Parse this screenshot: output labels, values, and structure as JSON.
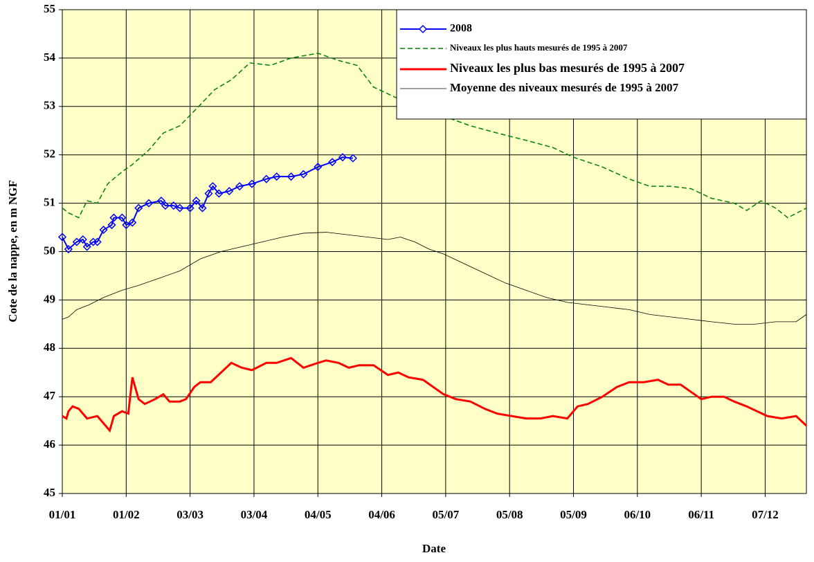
{
  "chart_data": {
    "type": "line",
    "ylabel": "Cote de la nappe, en m NGF",
    "xlabel": "Date",
    "xlim": [
      0,
      361
    ],
    "xticks": [
      {
        "value": 0,
        "label": "01/01"
      },
      {
        "value": 31,
        "label": "01/02"
      },
      {
        "value": 62,
        "label": "03/03"
      },
      {
        "value": 93,
        "label": "03/04"
      },
      {
        "value": 124,
        "label": "04/05"
      },
      {
        "value": 155,
        "label": "04/06"
      },
      {
        "value": 186,
        "label": "05/07"
      },
      {
        "value": 217,
        "label": "05/08"
      },
      {
        "value": 248,
        "label": "05/09"
      },
      {
        "value": 279,
        "label": "06/10"
      },
      {
        "value": 310,
        "label": "06/11"
      },
      {
        "value": 341,
        "label": "07/12"
      }
    ],
    "ylim": [
      45,
      55
    ],
    "yticks": [
      45,
      46,
      47,
      48,
      49,
      50,
      51,
      52,
      53,
      54,
      55
    ],
    "grid": true,
    "legend": "upper right",
    "series": [
      {
        "name": "2008",
        "color": "#0000ff",
        "style": "solid",
        "marker": "diamond",
        "x": [
          0,
          3,
          7,
          10,
          12,
          15,
          17,
          20,
          24,
          25,
          29,
          31,
          34,
          37,
          42,
          48,
          50,
          54,
          57,
          62,
          65,
          68,
          71,
          73,
          76,
          81,
          86,
          92,
          99,
          104,
          111,
          117,
          124,
          131,
          136,
          141
        ],
        "values": [
          50.3,
          50.05,
          50.2,
          50.25,
          50.1,
          50.2,
          50.2,
          50.45,
          50.55,
          50.7,
          50.7,
          50.55,
          50.6,
          50.9,
          51.0,
          51.05,
          50.95,
          50.95,
          50.9,
          50.9,
          51.05,
          50.9,
          51.2,
          51.35,
          51.2,
          51.25,
          51.35,
          51.4,
          51.5,
          51.55,
          51.55,
          51.6,
          51.75,
          51.85,
          51.95,
          51.93
        ]
      },
      {
        "name": "Niveaux les plus hauts mesurés de 1995 à 2007",
        "color": "#008000",
        "style": "dashed",
        "x": [
          0,
          3,
          8,
          12,
          17,
          22,
          29,
          34,
          42,
          49,
          57,
          65,
          74,
          82,
          91,
          101,
          111,
          124,
          134,
          143,
          151,
          161,
          171,
          185,
          198,
          211,
          225,
          238,
          248,
          262,
          275,
          285,
          295,
          305,
          315,
          326,
          332,
          339,
          346,
          352,
          361
        ],
        "values": [
          50.9,
          50.8,
          50.7,
          51.05,
          51.0,
          51.4,
          51.65,
          51.8,
          52.1,
          52.45,
          52.6,
          52.95,
          53.35,
          53.55,
          53.9,
          53.85,
          54.0,
          54.1,
          53.95,
          53.85,
          53.4,
          53.2,
          53.0,
          52.8,
          52.6,
          52.45,
          52.3,
          52.15,
          51.95,
          51.75,
          51.5,
          51.35,
          51.35,
          51.3,
          51.1,
          51.0,
          50.85,
          51.05,
          50.9,
          50.7,
          50.9
        ]
      },
      {
        "name": "Niveaux les plus bas mesurés de 1995 à 2007",
        "color": "#ff0000",
        "style": "solid",
        "x": [
          0,
          2,
          3,
          5,
          8,
          12,
          17,
          20,
          23,
          25,
          29,
          32,
          34,
          37,
          40,
          45,
          49,
          52,
          57,
          60,
          64,
          67,
          72,
          77,
          82,
          87,
          92,
          99,
          104,
          111,
          117,
          124,
          128,
          134,
          139,
          144,
          151,
          158,
          163,
          168,
          175,
          180,
          185,
          191,
          198,
          205,
          211,
          218,
          225,
          232,
          238,
          245,
          250,
          255,
          262,
          269,
          275,
          282,
          289,
          294,
          300,
          305,
          310,
          315,
          321,
          326,
          332,
          337,
          342,
          349,
          356,
          361
        ],
        "values": [
          46.6,
          46.55,
          46.7,
          46.8,
          46.75,
          46.55,
          46.6,
          46.45,
          46.3,
          46.6,
          46.7,
          46.65,
          47.4,
          46.95,
          46.85,
          46.95,
          47.05,
          46.9,
          46.9,
          46.95,
          47.2,
          47.3,
          47.3,
          47.5,
          47.7,
          47.6,
          47.55,
          47.7,
          47.7,
          47.8,
          47.6,
          47.7,
          47.75,
          47.7,
          47.6,
          47.65,
          47.65,
          47.45,
          47.5,
          47.4,
          47.35,
          47.2,
          47.05,
          46.95,
          46.9,
          46.75,
          46.65,
          46.6,
          46.55,
          46.55,
          46.6,
          46.55,
          46.8,
          46.85,
          47.0,
          47.2,
          47.3,
          47.3,
          47.35,
          47.25,
          47.25,
          47.1,
          46.95,
          47.0,
          47.0,
          46.9,
          46.8,
          46.7,
          46.6,
          46.55,
          46.6,
          46.4
        ]
      },
      {
        "name": "Moyenne des niveaux mesurés de 1995 à 2007",
        "color": "#000000",
        "style": "thin",
        "x": [
          0,
          3,
          7,
          13,
          20,
          29,
          37,
          47,
          57,
          67,
          77,
          87,
          97,
          107,
          117,
          128,
          138,
          148,
          158,
          164,
          171,
          178,
          185,
          195,
          205,
          215,
          225,
          235,
          245,
          255,
          265,
          275,
          285,
          295,
          305,
          315,
          326,
          336,
          346,
          356,
          361
        ],
        "values": [
          48.6,
          48.65,
          48.8,
          48.9,
          49.05,
          49.2,
          49.3,
          49.45,
          49.6,
          49.85,
          50.0,
          50.1,
          50.2,
          50.3,
          50.38,
          50.4,
          50.35,
          50.3,
          50.25,
          50.3,
          50.2,
          50.05,
          49.95,
          49.75,
          49.55,
          49.35,
          49.2,
          49.05,
          48.95,
          48.9,
          48.85,
          48.8,
          48.7,
          48.65,
          48.6,
          48.55,
          48.5,
          48.5,
          48.55,
          48.55,
          48.7
        ]
      }
    ]
  }
}
